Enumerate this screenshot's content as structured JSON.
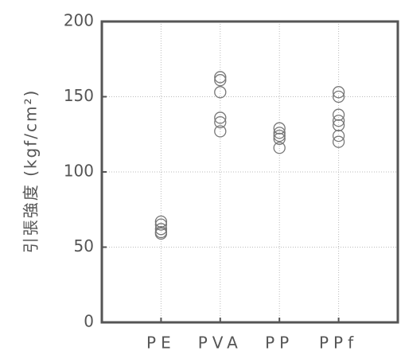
{
  "chart_data": {
    "type": "strip",
    "ylabel": "引張強度 (kgf/cm²)",
    "categories": [
      "PE",
      "PVA",
      "PP",
      "PPf"
    ],
    "values": [
      [
        67,
        65,
        62,
        60,
        59
      ],
      [
        163,
        161,
        153,
        136,
        133,
        127
      ],
      [
        129,
        126,
        124,
        122,
        116
      ],
      [
        153,
        150,
        138,
        134,
        131,
        124,
        120
      ]
    ],
    "color": "#777777",
    "ylim": [
      0,
      200
    ],
    "yticks": [
      0,
      50,
      100,
      150,
      200
    ],
    "grid": true
  }
}
